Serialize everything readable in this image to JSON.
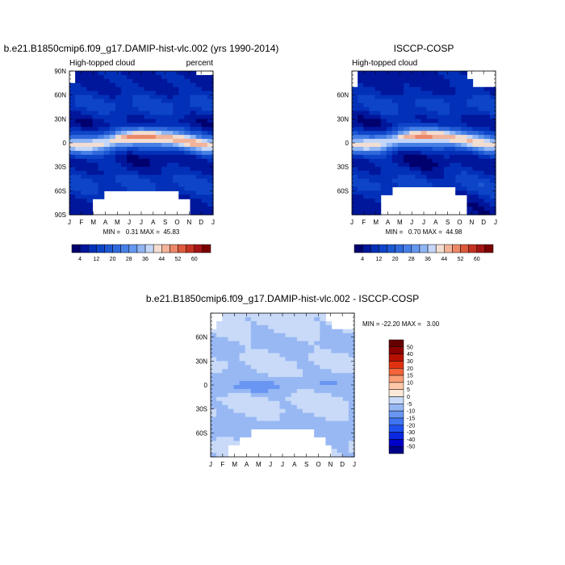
{
  "chart_data": [
    {
      "type": "heatmap",
      "id": "model",
      "title": "b.e21.B1850cmip6.f09_g17.DAMIP-hist-vlc.002 (yrs 1990-2014)",
      "subtitle_left": "High-topped cloud",
      "subtitle_right": "percent",
      "x_tick_labels": [
        "J",
        "F",
        "M",
        "A",
        "M",
        "J",
        "J",
        "A",
        "S",
        "O",
        "N",
        "D",
        "J"
      ],
      "y_tick_labels": [
        "90N",
        "60N",
        "30N",
        "0",
        "30S",
        "60S",
        "90S"
      ],
      "y_tick_values": [
        90,
        60,
        30,
        0,
        -30,
        -60,
        -90
      ],
      "ylim": [
        -90,
        90
      ],
      "stats_text": "MIN =   0.31 MAX =  45.83",
      "min": 0.31,
      "max": 45.83,
      "colorbar_labels": [
        "4",
        "12",
        "20",
        "28",
        "36",
        "44",
        "52",
        "60"
      ],
      "colorbar_levels": [
        0,
        4,
        8,
        12,
        16,
        20,
        24,
        28,
        32,
        36,
        40,
        44,
        48,
        52,
        56,
        60,
        64
      ],
      "field_shift_deg": 0
    },
    {
      "type": "heatmap",
      "id": "obs",
      "title": "ISCCP-COSP",
      "subtitle_left": "High-topped cloud",
      "x_tick_labels": [
        "J",
        "F",
        "M",
        "A",
        "M",
        "J",
        "J",
        "A",
        "S",
        "O",
        "N",
        "D",
        "J"
      ],
      "y_tick_labels": [
        "60N",
        "30N",
        "0",
        "30S",
        "60S"
      ],
      "y_tick_values": [
        60,
        30,
        0,
        -30,
        -60
      ],
      "ylim": [
        -90,
        90
      ],
      "stats_text": "MIN =   0.70 MAX =  44.98",
      "min": 0.7,
      "max": 44.98,
      "colorbar_labels": [
        "4",
        "12",
        "20",
        "28",
        "36",
        "44",
        "52",
        "60"
      ],
      "colorbar_levels": [
        0,
        4,
        8,
        12,
        16,
        20,
        24,
        28,
        32,
        36,
        40,
        44,
        48,
        52,
        56,
        60,
        64
      ],
      "field_shift_deg": 1
    },
    {
      "type": "heatmap",
      "id": "diff",
      "title": "b.e21.B1850cmip6.f09_g17.DAMIP-hist-vlc.002 - ISCCP-COSP",
      "x_tick_labels": [
        "J",
        "F",
        "M",
        "A",
        "M",
        "J",
        "J",
        "A",
        "S",
        "O",
        "N",
        "D",
        "J"
      ],
      "y_tick_labels": [
        "60N",
        "30N",
        "0",
        "30S",
        "60S"
      ],
      "y_tick_values": [
        60,
        30,
        0,
        -30,
        -60
      ],
      "ylim": [
        -90,
        90
      ],
      "stats_text": "MIN = -22.20 MAX =   3.00",
      "min": -22.2,
      "max": 3.0,
      "colorbar_labels": [
        "50",
        "40",
        "30",
        "20",
        "15",
        "10",
        "5",
        "0",
        "-5",
        "-10",
        "-15",
        "-20",
        "-30",
        "-40",
        "-50"
      ],
      "colorbar_levels": [
        -50,
        -40,
        -30,
        -20,
        -15,
        -10,
        -5,
        0,
        5,
        10,
        15,
        20,
        30,
        40,
        50
      ]
    }
  ],
  "colors": {
    "sequential": [
      "#00006e",
      "#00169b",
      "#0330b8",
      "#0e45c8",
      "#1d58d2",
      "#3069dc",
      "#4680e6",
      "#6497ee",
      "#8fb5f4",
      "#c3d6f8",
      "#f2ddd0",
      "#f2b39a",
      "#ec8868",
      "#dd5a3c",
      "#c53222",
      "#a31414",
      "#7a0000"
    ],
    "diverging": [
      "#000088",
      "#0000c8",
      "#0a28e0",
      "#1e50ee",
      "#3f75f0",
      "#6896f2",
      "#98b8f4",
      "#c8daf8",
      "#fbe8d8",
      "#fcc8a8",
      "#fa9e78",
      "#f2643a",
      "#e03210",
      "#b81000",
      "#8c0000",
      "#640000"
    ]
  }
}
